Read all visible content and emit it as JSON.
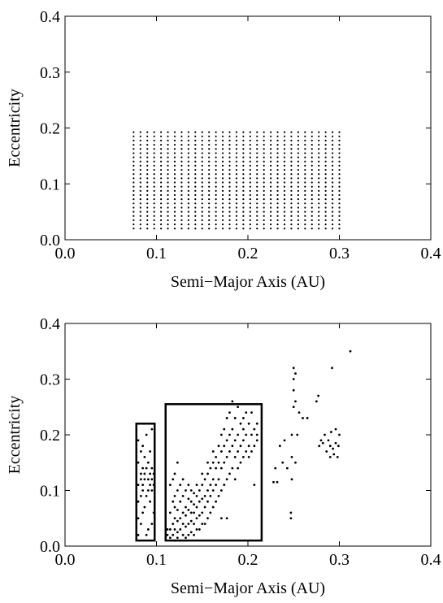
{
  "chart_data": [
    {
      "type": "scatter",
      "title": "",
      "xlabel": "Semi−Major Axis (AU)",
      "ylabel": "Eccentricity",
      "xlim": [
        0.0,
        0.4
      ],
      "ylim": [
        0.0,
        0.4
      ],
      "xticks": [
        "0.0",
        "0.1",
        "0.2",
        "0.3",
        "0.4"
      ],
      "yticks": [
        "0.0",
        "0.1",
        "0.2",
        "0.3",
        "0.4"
      ],
      "grid": false,
      "grid_points": {
        "x_min": 0.075,
        "x_max": 0.3,
        "x_step": 0.0075,
        "y_min": 0.02,
        "y_max": 0.195,
        "y_step": 0.0075
      }
    },
    {
      "type": "scatter",
      "title": "",
      "xlabel": "Semi−Major Axis (AU)",
      "ylabel": "Eccentricity",
      "xlim": [
        0.0,
        0.4
      ],
      "ylim": [
        0.0,
        0.4
      ],
      "xticks": [
        "0.0",
        "0.1",
        "0.2",
        "0.3",
        "0.4"
      ],
      "yticks": [
        "0.0",
        "0.1",
        "0.2",
        "0.3",
        "0.4"
      ],
      "grid": false,
      "highlight_boxes": [
        {
          "x": [
            0.078,
            0.098
          ],
          "y": [
            0.01,
            0.22
          ]
        },
        {
          "x": [
            0.11,
            0.215
          ],
          "y": [
            0.01,
            0.255
          ]
        }
      ],
      "points": [
        [
          0.08,
          0.02
        ],
        [
          0.08,
          0.05
        ],
        [
          0.08,
          0.08
        ],
        [
          0.08,
          0.11
        ],
        [
          0.08,
          0.15
        ],
        [
          0.08,
          0.19
        ],
        [
          0.083,
          0.04
        ],
        [
          0.083,
          0.09
        ],
        [
          0.083,
          0.13
        ],
        [
          0.083,
          0.17
        ],
        [
          0.083,
          0.12
        ],
        [
          0.085,
          0.06
        ],
        [
          0.085,
          0.1
        ],
        [
          0.085,
          0.14
        ],
        [
          0.085,
          0.18
        ],
        [
          0.085,
          0.11
        ],
        [
          0.087,
          0.07
        ],
        [
          0.087,
          0.12
        ],
        [
          0.087,
          0.16
        ],
        [
          0.087,
          0.13
        ],
        [
          0.089,
          0.02
        ],
        [
          0.089,
          0.09
        ],
        [
          0.089,
          0.14
        ],
        [
          0.089,
          0.2
        ],
        [
          0.091,
          0.03
        ],
        [
          0.091,
          0.1
        ],
        [
          0.091,
          0.15
        ],
        [
          0.091,
          0.12
        ],
        [
          0.093,
          0.08
        ],
        [
          0.093,
          0.11
        ],
        [
          0.093,
          0.13
        ],
        [
          0.093,
          0.17
        ],
        [
          0.095,
          0.04
        ],
        [
          0.095,
          0.1
        ],
        [
          0.095,
          0.12
        ],
        [
          0.095,
          0.14
        ],
        [
          0.095,
          0.21
        ],
        [
          0.097,
          0.06
        ],
        [
          0.097,
          0.11
        ],
        [
          0.097,
          0.13
        ],
        [
          0.112,
          0.02
        ],
        [
          0.112,
          0.03
        ],
        [
          0.115,
          0.015
        ],
        [
          0.115,
          0.03
        ],
        [
          0.115,
          0.06
        ],
        [
          0.115,
          0.11
        ],
        [
          0.118,
          0.02
        ],
        [
          0.118,
          0.04
        ],
        [
          0.118,
          0.08
        ],
        [
          0.118,
          0.12
        ],
        [
          0.12,
          0.01
        ],
        [
          0.12,
          0.03
        ],
        [
          0.12,
          0.05
        ],
        [
          0.12,
          0.07
        ],
        [
          0.12,
          0.09
        ],
        [
          0.12,
          0.13
        ],
        [
          0.123,
          0.015
        ],
        [
          0.123,
          0.025
        ],
        [
          0.123,
          0.045
        ],
        [
          0.123,
          0.065
        ],
        [
          0.123,
          0.1
        ],
        [
          0.123,
          0.15
        ],
        [
          0.126,
          0.01
        ],
        [
          0.126,
          0.03
        ],
        [
          0.126,
          0.05
        ],
        [
          0.126,
          0.08
        ],
        [
          0.126,
          0.11
        ],
        [
          0.129,
          0.02
        ],
        [
          0.129,
          0.04
        ],
        [
          0.129,
          0.06
        ],
        [
          0.129,
          0.09
        ],
        [
          0.129,
          0.12
        ],
        [
          0.132,
          0.015
        ],
        [
          0.132,
          0.035
        ],
        [
          0.132,
          0.055
        ],
        [
          0.132,
          0.07
        ],
        [
          0.132,
          0.1
        ],
        [
          0.135,
          0.02
        ],
        [
          0.135,
          0.04
        ],
        [
          0.135,
          0.065
        ],
        [
          0.135,
          0.085
        ],
        [
          0.135,
          0.11
        ],
        [
          0.138,
          0.025
        ],
        [
          0.138,
          0.045
        ],
        [
          0.138,
          0.06
        ],
        [
          0.138,
          0.08
        ],
        [
          0.138,
          0.1
        ],
        [
          0.141,
          0.02
        ],
        [
          0.141,
          0.04
        ],
        [
          0.141,
          0.06
        ],
        [
          0.141,
          0.075
        ],
        [
          0.141,
          0.095
        ],
        [
          0.144,
          0.03
        ],
        [
          0.144,
          0.05
        ],
        [
          0.144,
          0.07
        ],
        [
          0.144,
          0.09
        ],
        [
          0.144,
          0.11
        ],
        [
          0.147,
          0.03
        ],
        [
          0.147,
          0.055
        ],
        [
          0.147,
          0.08
        ],
        [
          0.147,
          0.1
        ],
        [
          0.15,
          0.04
        ],
        [
          0.15,
          0.06
        ],
        [
          0.15,
          0.085
        ],
        [
          0.15,
          0.11
        ],
        [
          0.15,
          0.13
        ],
        [
          0.153,
          0.04
        ],
        [
          0.153,
          0.07
        ],
        [
          0.153,
          0.09
        ],
        [
          0.153,
          0.12
        ],
        [
          0.156,
          0.05
        ],
        [
          0.156,
          0.08
        ],
        [
          0.156,
          0.1
        ],
        [
          0.156,
          0.13
        ],
        [
          0.156,
          0.15
        ],
        [
          0.159,
          0.06
        ],
        [
          0.159,
          0.09
        ],
        [
          0.159,
          0.11
        ],
        [
          0.159,
          0.14
        ],
        [
          0.162,
          0.07
        ],
        [
          0.162,
          0.1
        ],
        [
          0.162,
          0.12
        ],
        [
          0.162,
          0.15
        ],
        [
          0.162,
          0.17
        ],
        [
          0.165,
          0.08
        ],
        [
          0.165,
          0.11
        ],
        [
          0.165,
          0.14
        ],
        [
          0.165,
          0.16
        ],
        [
          0.168,
          0.09
        ],
        [
          0.168,
          0.12
        ],
        [
          0.168,
          0.15
        ],
        [
          0.168,
          0.18
        ],
        [
          0.171,
          0.05
        ],
        [
          0.171,
          0.1
        ],
        [
          0.171,
          0.14
        ],
        [
          0.171,
          0.17
        ],
        [
          0.171,
          0.2
        ],
        [
          0.174,
          0.11
        ],
        [
          0.174,
          0.15
        ],
        [
          0.174,
          0.18
        ],
        [
          0.174,
          0.21
        ],
        [
          0.177,
          0.12
        ],
        [
          0.177,
          0.16
        ],
        [
          0.177,
          0.19
        ],
        [
          0.177,
          0.23
        ],
        [
          0.177,
          0.05
        ],
        [
          0.18,
          0.13
        ],
        [
          0.18,
          0.17
        ],
        [
          0.18,
          0.2
        ],
        [
          0.18,
          0.24
        ],
        [
          0.183,
          0.14
        ],
        [
          0.183,
          0.18
        ],
        [
          0.183,
          0.21
        ],
        [
          0.183,
          0.26
        ],
        [
          0.186,
          0.12
        ],
        [
          0.186,
          0.16
        ],
        [
          0.186,
          0.19
        ],
        [
          0.186,
          0.23
        ],
        [
          0.189,
          0.14
        ],
        [
          0.189,
          0.17
        ],
        [
          0.189,
          0.2
        ],
        [
          0.189,
          0.25
        ],
        [
          0.192,
          0.15
        ],
        [
          0.192,
          0.18
        ],
        [
          0.192,
          0.22
        ],
        [
          0.195,
          0.16
        ],
        [
          0.195,
          0.19
        ],
        [
          0.195,
          0.23
        ],
        [
          0.195,
          0.21
        ],
        [
          0.198,
          0.17
        ],
        [
          0.198,
          0.2
        ],
        [
          0.198,
          0.24
        ],
        [
          0.201,
          0.16
        ],
        [
          0.201,
          0.18
        ],
        [
          0.201,
          0.22
        ],
        [
          0.204,
          0.17
        ],
        [
          0.204,
          0.2
        ],
        [
          0.204,
          0.24
        ],
        [
          0.207,
          0.11
        ],
        [
          0.207,
          0.18
        ],
        [
          0.207,
          0.21
        ],
        [
          0.21,
          0.19
        ],
        [
          0.21,
          0.2
        ],
        [
          0.21,
          0.22
        ],
        [
          0.228,
          0.115
        ],
        [
          0.23,
          0.14
        ],
        [
          0.232,
          0.115
        ],
        [
          0.235,
          0.18
        ],
        [
          0.238,
          0.15
        ],
        [
          0.24,
          0.19
        ],
        [
          0.243,
          0.14
        ],
        [
          0.247,
          0.05
        ],
        [
          0.247,
          0.06
        ],
        [
          0.248,
          0.12
        ],
        [
          0.248,
          0.16
        ],
        [
          0.248,
          0.2
        ],
        [
          0.25,
          0.25
        ],
        [
          0.25,
          0.28
        ],
        [
          0.25,
          0.3
        ],
        [
          0.25,
          0.32
        ],
        [
          0.252,
          0.15
        ],
        [
          0.252,
          0.26
        ],
        [
          0.252,
          0.31
        ],
        [
          0.254,
          0.2
        ],
        [
          0.256,
          0.24
        ],
        [
          0.26,
          0.23
        ],
        [
          0.265,
          0.23
        ],
        [
          0.275,
          0.26
        ],
        [
          0.277,
          0.27
        ],
        [
          0.278,
          0.18
        ],
        [
          0.28,
          0.19
        ],
        [
          0.282,
          0.185
        ],
        [
          0.284,
          0.2
        ],
        [
          0.286,
          0.17
        ],
        [
          0.288,
          0.19
        ],
        [
          0.29,
          0.16
        ],
        [
          0.29,
          0.18
        ],
        [
          0.291,
          0.205
        ],
        [
          0.292,
          0.32
        ],
        [
          0.293,
          0.175
        ],
        [
          0.294,
          0.165
        ],
        [
          0.296,
          0.185
        ],
        [
          0.296,
          0.21
        ],
        [
          0.298,
          0.16
        ],
        [
          0.299,
          0.18
        ],
        [
          0.3,
          0.2
        ],
        [
          0.312,
          0.35
        ]
      ]
    }
  ]
}
